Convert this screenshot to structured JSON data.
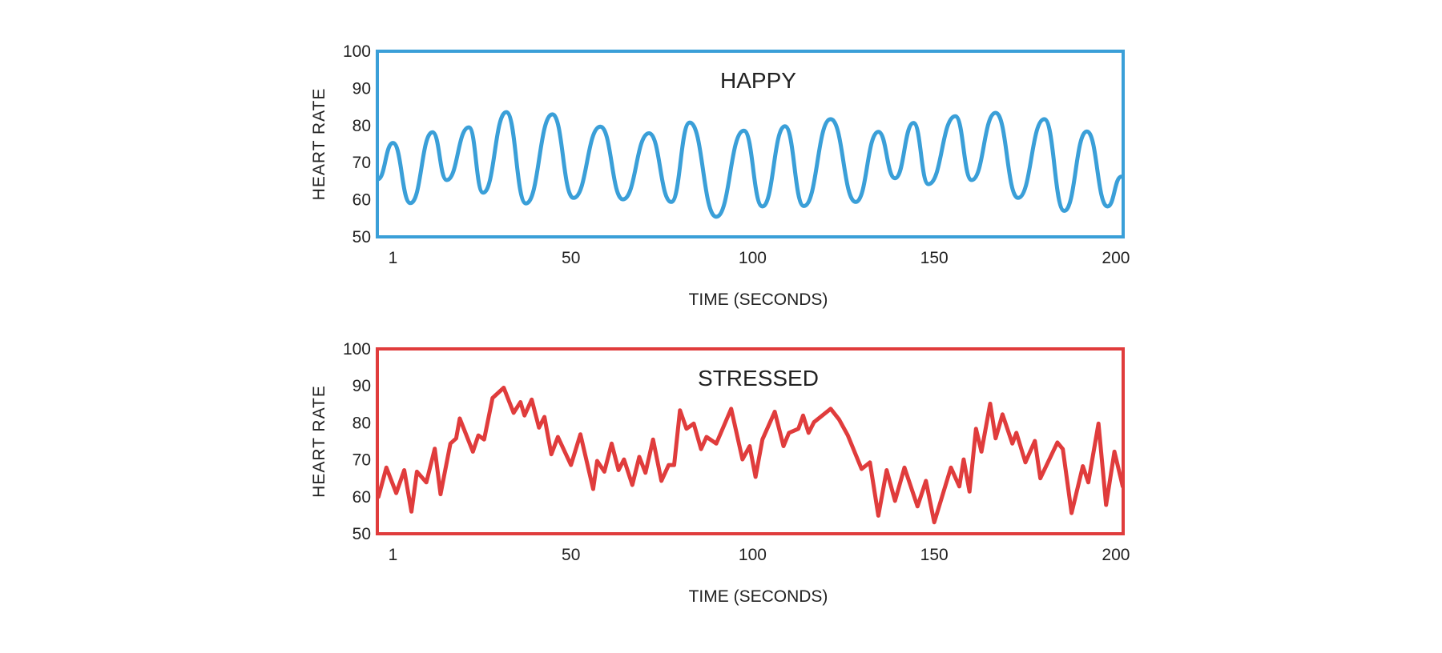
{
  "chart_data": [
    {
      "type": "line",
      "title": "HAPPY",
      "xlabel": "TIME (SECONDS)",
      "ylabel": "HEART RATE",
      "xlim": [
        -3.3,
        202
      ],
      "ylim": [
        50,
        100
      ],
      "xticks": [
        1,
        50,
        100,
        150,
        200
      ],
      "yticks": [
        50,
        60,
        70,
        80,
        90,
        100
      ],
      "grid": false,
      "color": "#3a9fd8",
      "smooth": true,
      "x": [
        -3.2,
        1,
        5.8,
        11.9,
        15.8,
        21.9,
        25.8,
        32.2,
        37.6,
        44.9,
        50.7,
        58.1,
        64.3,
        71.5,
        77.6,
        82.7,
        90,
        97.6,
        102.7,
        108.9,
        114.1,
        121.5,
        128.4,
        134.6,
        139.2,
        144.3,
        148.4,
        155.8,
        160.3,
        166.9,
        173.1,
        180.3,
        185.8,
        192,
        197.7,
        201.5
      ],
      "y": [
        65.5,
        75.3,
        59.1,
        78.2,
        65.3,
        79.5,
        61.9,
        83.6,
        59,
        83,
        60.5,
        79.7,
        60.1,
        77.9,
        59.4,
        80.8,
        55.4,
        78.6,
        58.2,
        79.8,
        58.3,
        81.7,
        59.4,
        78.3,
        65.8,
        80.7,
        64.2,
        82.5,
        65.3,
        83.4,
        60.5,
        81.7,
        57,
        78.4,
        58.2,
        66.2
      ]
    },
    {
      "type": "line",
      "title": "STRESSED",
      "xlabel": "TIME (SECONDS)",
      "ylabel": "HEART RATE",
      "xlim": [
        -3.3,
        202
      ],
      "ylim": [
        50,
        100
      ],
      "xticks": [
        1,
        50,
        100,
        150,
        200
      ],
      "yticks": [
        50,
        60,
        70,
        80,
        90,
        100
      ],
      "grid": false,
      "color": "#e03c3c",
      "smooth": false,
      "x": [
        -3,
        -0.8,
        1.9,
        4.1,
        6.1,
        7.6,
        10.2,
        12.5,
        14.1,
        16.8,
        18.4,
        19.4,
        23,
        24.5,
        26.1,
        28.4,
        31.5,
        34.2,
        36.1,
        37.2,
        39.2,
        41.2,
        42.7,
        44.6,
        46.4,
        50,
        52.6,
        56.1,
        57.2,
        59.2,
        61.2,
        63.1,
        64.6,
        66.9,
        68.8,
        70.5,
        72.6,
        74.9,
        76.9,
        78.4,
        80,
        81.8,
        83.8,
        85.8,
        87.3,
        90,
        94.1,
        97.2,
        99.2,
        100.8,
        102.7,
        106.1,
        108.5,
        110,
        112.6,
        113.9,
        115.4,
        116.9,
        121.5,
        123.8,
        126.2,
        130,
        132.3,
        134.6,
        136.9,
        139.2,
        141.8,
        145.4,
        147.7,
        150,
        154.6,
        156.9,
        158.1,
        159.7,
        161.5,
        163,
        165.4,
        166.9,
        168.8,
        171.5,
        172.6,
        175.1,
        177.7,
        179.2,
        183.9,
        185.4,
        187.8,
        190.9,
        192.4,
        195.2,
        197.3,
        199.6,
        201.9
      ],
      "y": [
        60,
        67.9,
        61,
        67.2,
        56,
        66.8,
        63.9,
        73,
        60.7,
        74.4,
        75.8,
        81.2,
        72.2,
        76.6,
        75.5,
        86.7,
        89.5,
        82.7,
        85.6,
        82,
        86.3,
        78.7,
        81.6,
        71.5,
        76.2,
        68.6,
        76.9,
        62.1,
        69.7,
        66.8,
        74.4,
        67.2,
        70.1,
        63.2,
        70.8,
        66.5,
        75.5,
        64.3,
        68.6,
        68.6,
        83.4,
        78.4,
        79.8,
        72.9,
        76.2,
        74.4,
        83.8,
        70.1,
        73.7,
        65.4,
        75.5,
        83,
        73.7,
        77.3,
        78.4,
        82,
        77.3,
        80.2,
        83.8,
        80.9,
        76.6,
        67.5,
        69.3,
        54.9,
        67.2,
        58.9,
        67.9,
        57.4,
        64.3,
        53.1,
        67.9,
        62.8,
        70.1,
        61.4,
        78.4,
        72.2,
        85.2,
        75.8,
        82.3,
        74.4,
        77.3,
        69.3,
        75.1,
        65,
        74.7,
        72.9,
        55.6,
        68.3,
        63.9,
        79.8,
        57.8,
        72.2,
        62.8
      ]
    }
  ]
}
